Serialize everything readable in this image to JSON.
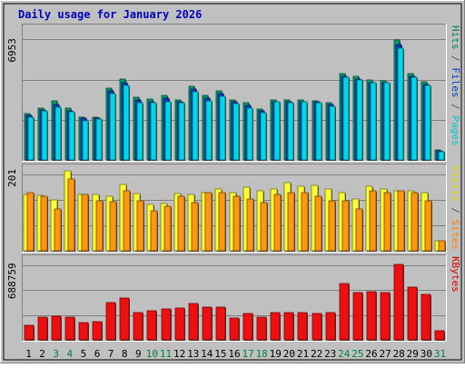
{
  "chart_data": {
    "type": "bar",
    "title": "Daily usage for January 2026",
    "categories": [
      "1",
      "2",
      "3",
      "4",
      "5",
      "6",
      "7",
      "8",
      "9",
      "10",
      "11",
      "12",
      "13",
      "14",
      "15",
      "16",
      "17",
      "18",
      "19",
      "20",
      "21",
      "22",
      "23",
      "24",
      "25",
      "26",
      "27",
      "28",
      "29",
      "30",
      "31"
    ],
    "weekend_days": [
      "3",
      "4",
      "10",
      "11",
      "17",
      "18",
      "24",
      "25",
      "31"
    ],
    "panels": [
      {
        "id": "hits-files-pages",
        "y_tick_label": "6953",
        "ylim": [
          0,
          7700
        ],
        "right_labels": [
          {
            "text": "Pages",
            "color": "#00c8c8"
          },
          {
            "text": " / ",
            "color": "#555555"
          },
          {
            "text": "Files",
            "color": "#0040c0"
          },
          {
            "text": " / ",
            "color": "#555555"
          },
          {
            "text": "Hits",
            "color": "#008060"
          }
        ],
        "series": [
          {
            "name": "Hits",
            "color": "#00a070",
            "values": [
              2700,
              3000,
              3450,
              3000,
              2500,
              2500,
              4150,
              4700,
              3650,
              3550,
              3750,
              3500,
              4250,
              3750,
              4000,
              3500,
              3300,
              2950,
              3500,
              3500,
              3500,
              3450,
              3300,
              5000,
              4850,
              4650,
              4600,
              6953,
              5000,
              4550,
              600
            ]
          },
          {
            "name": "Files",
            "color": "#0040c0",
            "values": [
              2600,
              2900,
              3200,
              2850,
              2400,
              2400,
              4000,
              4500,
              3500,
              3400,
              3600,
              3400,
              4100,
              3600,
              3850,
              3350,
              3150,
              2850,
              3400,
              3400,
              3400,
              3350,
              3200,
              4850,
              4700,
              4500,
              4500,
              6700,
              4850,
              4400,
              550
            ]
          },
          {
            "name": "Pages",
            "color": "#00d8e8",
            "values": [
              2500,
              2850,
              3050,
              2800,
              2250,
              2350,
              3850,
              4300,
              3300,
              3300,
              3350,
              3300,
              3950,
              3450,
              3700,
              3250,
              3000,
              2750,
              3350,
              3300,
              3350,
              3300,
              3100,
              4800,
              4650,
              4500,
              4500,
              6500,
              4800,
              4350,
              500
            ]
          }
        ]
      },
      {
        "id": "visits-sites",
        "y_tick_label": "201",
        "ylim": [
          0,
          210
        ],
        "right_labels": [
          {
            "text": "Sites",
            "color": "#ff8000"
          },
          {
            "text": " / ",
            "color": "#555555"
          },
          {
            "text": "Visits",
            "color": "#d8d800"
          }
        ],
        "series": [
          {
            "name": "Visits",
            "color": "#ffff30",
            "values": [
              141,
              140,
              128,
              201,
              141,
              141,
              136,
              166,
              144,
              116,
              119,
              144,
              141,
              146,
              156,
              146,
              160,
              151,
              156,
              171,
              161,
              164,
              156,
              146,
              131,
              161,
              156,
              151,
              151,
              146,
              26
            ]
          },
          {
            "name": "Sites",
            "color": "#ff9810",
            "values": [
              146,
              136,
              106,
              181,
              141,
              126,
              123,
              151,
              126,
              101,
              112,
              136,
              121,
              146,
              146,
              136,
              131,
              121,
              141,
              146,
              146,
              136,
              126,
              126,
              106,
              151,
              146,
              151,
              146,
              126,
              26
            ]
          }
        ]
      },
      {
        "id": "kbytes",
        "y_tick_label": "688759",
        "ylim": [
          0,
          750000
        ],
        "right_labels": [
          {
            "text": "KBytes",
            "color": "#e00000"
          }
        ],
        "series": [
          {
            "name": "KBytes",
            "color": "#ee1010",
            "values": [
              130000,
              210000,
              220000,
              210000,
              160000,
              170000,
              340000,
              380000,
              250000,
              270000,
              280000,
              290000,
              330000,
              300000,
              300000,
              200000,
              240000,
              210000,
              250000,
              250000,
              250000,
              240000,
              250000,
              520000,
              430000,
              440000,
              430000,
              688759,
              480000,
              420000,
              80000
            ]
          }
        ]
      }
    ]
  }
}
